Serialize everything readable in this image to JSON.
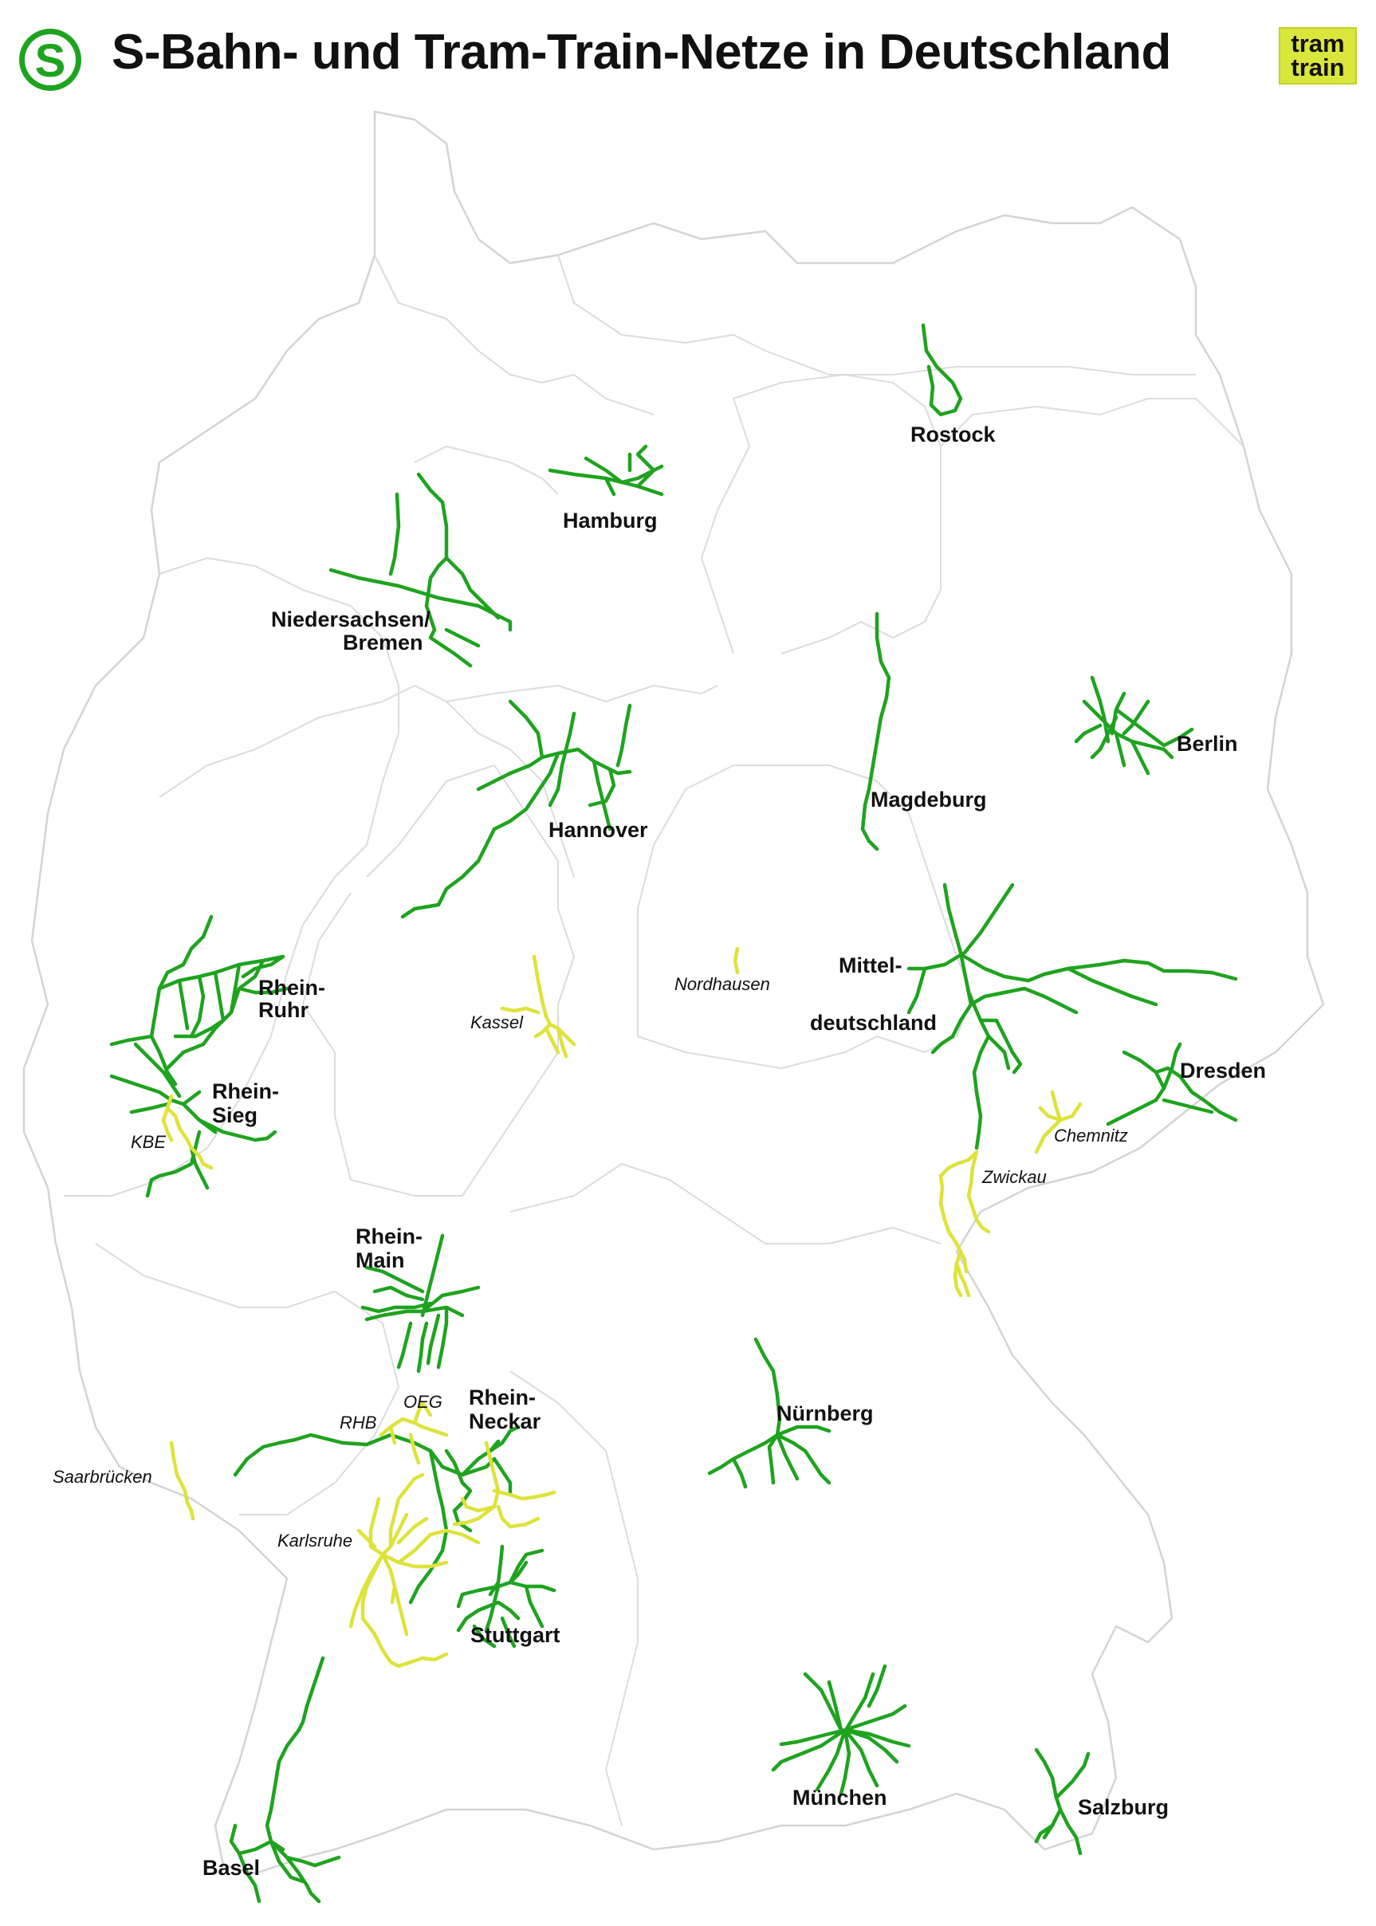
{
  "title": "S-Bahn- und Tram-Train-Netze in Deutschland",
  "colors": {
    "sbahn": "#1fa31f",
    "tramtrain": "#dde33a",
    "border": "#d4d4d4"
  },
  "logo": {
    "icon": "sbahn-logo-icon",
    "glyph": "S"
  },
  "badge": {
    "line1": "tram",
    "line2": "train"
  },
  "sbahn_networks": [
    "Rostock",
    "Hamburg",
    "Niedersachsen/",
    "Bremen",
    "Berlin",
    "Magdeburg",
    "Hannover",
    "Rhein-",
    "Ruhr",
    "Mittel-",
    "deutschland",
    "Rhein-",
    "Sieg",
    "Dresden",
    "Rhein-",
    "Main",
    "Rhein-",
    "Neckar",
    "Nürnberg",
    "Stuttgart",
    "München",
    "Salzburg",
    "Basel"
  ],
  "tramtrain_networks": [
    "Kassel",
    "Nordhausen",
    "KBE",
    "Chemnitz",
    "Zwickau",
    "OEG",
    "RHB",
    "Saarbrücken",
    "Karlsruhe"
  ]
}
